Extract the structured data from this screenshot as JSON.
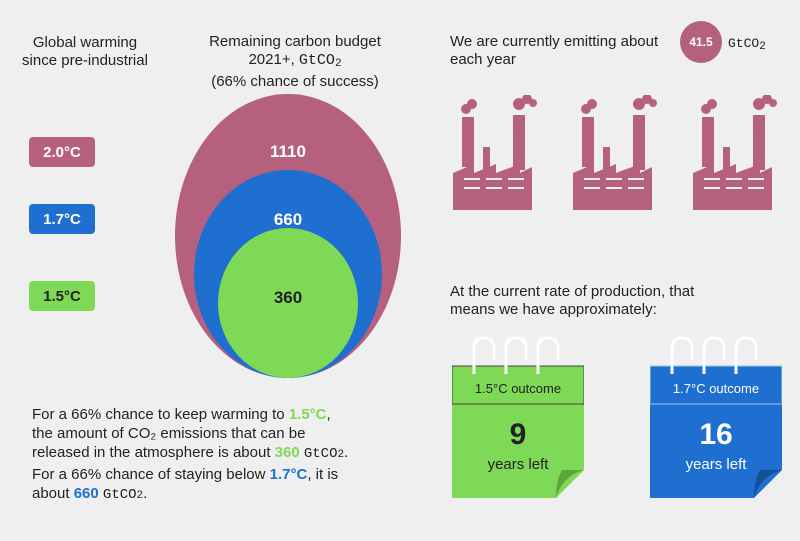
{
  "warming": {
    "heading_line1": "Global warming",
    "heading_line2": "since pre-industrial",
    "badges": [
      {
        "label": "2.0°C",
        "color": "#b5607c"
      },
      {
        "label": "1.7°C",
        "color": "#1f6fd0"
      },
      {
        "label": "1.5°C",
        "color": "#7ed957"
      }
    ]
  },
  "budget": {
    "heading_line1": "Remaining carbon budget",
    "heading_line2_pre": "2021+, ",
    "unit": "GtCO",
    "unit_sub": "2",
    "heading_line3": "(66% chance of success)",
    "values": [
      "1110",
      "660",
      "360"
    ]
  },
  "emissions": {
    "text_pre": "We are currently emitting about",
    "value": "41.5",
    "unit": "GtCO",
    "unit_sub": "2",
    "text_post": "each year"
  },
  "production": {
    "line1": "At the current rate of production, that",
    "line2": "means we have approximately:"
  },
  "calendars": [
    {
      "label": "1.5°C outcome",
      "number": "9",
      "caption": "years left",
      "color": "#7ed957",
      "dark": "#5aa83a"
    },
    {
      "label": "1.7°C outcome",
      "number": "16",
      "caption": "years left",
      "color": "#1f6fd0",
      "dark": "#174f99"
    }
  ],
  "paragraph": {
    "p1": "For a 66% chance to keep warming to ",
    "t1": "1.5°C",
    "p2": ",",
    "p3": "the amount of CO₂ emissions that can be",
    "p4": "released in the atmosphere is about ",
    "v1": "360",
    "unit": "GtCO",
    "unit_sub": "2",
    "dot": ".",
    "p5": "For a 66% chance of staying below ",
    "t2": "1.7°C",
    "p6": ", it is",
    "p7": "about ",
    "v2": "660"
  },
  "colors": {
    "pink": "#b5607c",
    "blue": "#1f6fd0",
    "green": "#7ed957"
  }
}
